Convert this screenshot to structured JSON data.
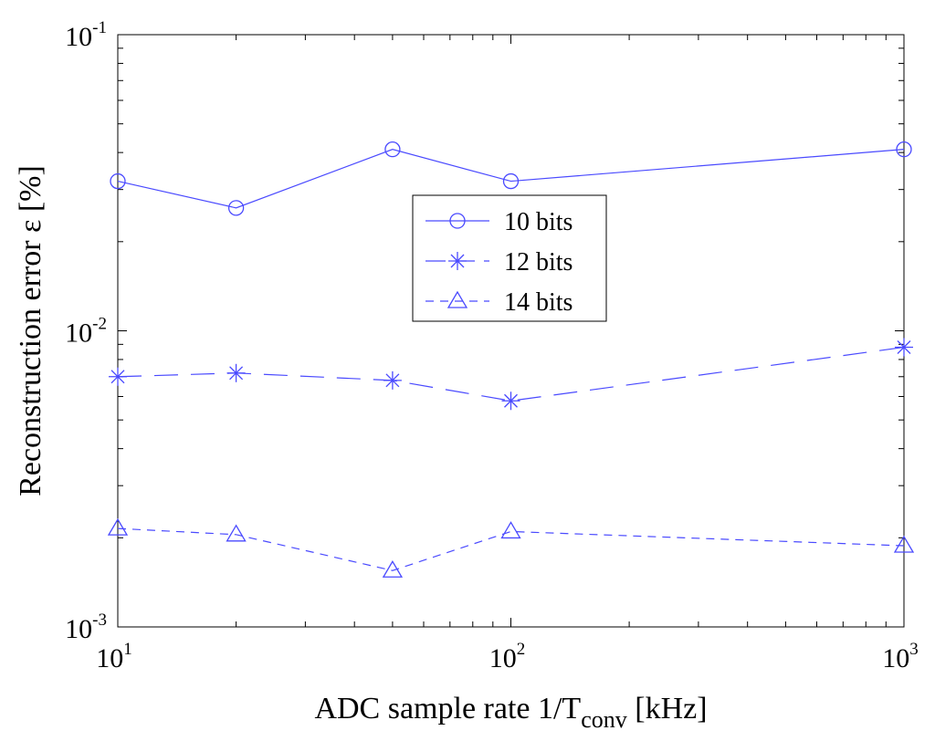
{
  "chart_data": {
    "type": "line",
    "xscale": "log",
    "yscale": "log",
    "xlim": [
      10,
      1000
    ],
    "ylim": [
      0.001,
      0.1
    ],
    "xticks": [
      {
        "value": 10,
        "base": "10",
        "exp": "1"
      },
      {
        "value": 100,
        "base": "10",
        "exp": "2"
      },
      {
        "value": 1000,
        "base": "10",
        "exp": "3"
      }
    ],
    "yticks": [
      {
        "value": 0.001,
        "base": "10",
        "exp": "-3"
      },
      {
        "value": 0.01,
        "base": "10",
        "exp": "-2"
      },
      {
        "value": 0.1,
        "base": "10",
        "exp": "-1"
      }
    ],
    "xlabel": {
      "main": "ADC sample rate 1/T",
      "sub": "conv",
      "tail": " [kHz]"
    },
    "ylabel": "Reconstruction error ε [%]",
    "x": [
      10,
      20,
      50,
      100,
      1000
    ],
    "series": [
      {
        "name": "10 bits",
        "marker": "circle",
        "dash": "solid",
        "values": [
          0.032,
          0.026,
          0.041,
          0.032,
          0.041
        ]
      },
      {
        "name": "12 bits",
        "marker": "star",
        "dash": "long-dash",
        "values": [
          0.007,
          0.0072,
          0.0068,
          0.0058,
          0.0088
        ]
      },
      {
        "name": "14 bits",
        "marker": "triangle",
        "dash": "short-dash",
        "values": [
          0.00215,
          0.00205,
          0.00155,
          0.0021,
          0.00188
        ]
      }
    ],
    "legend_position": "center",
    "grid": false,
    "line_color": "#4a4aff"
  }
}
